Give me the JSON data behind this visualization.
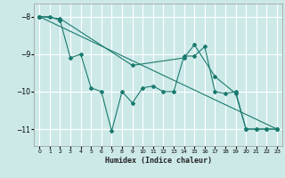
{
  "xlabel": "Humidex (Indice chaleur)",
  "ylabel": "",
  "background_color": "#cce9e8",
  "line_color": "#1a7a6e",
  "grid_color": "#ffffff",
  "xlim": [
    -0.5,
    23.5
  ],
  "ylim": [
    -11.45,
    -7.65
  ],
  "yticks": [
    -11,
    -10,
    -9,
    -8
  ],
  "xticks": [
    0,
    1,
    2,
    3,
    4,
    5,
    6,
    7,
    8,
    9,
    10,
    11,
    12,
    13,
    14,
    15,
    16,
    17,
    18,
    19,
    20,
    21,
    22,
    23
  ],
  "lines": [
    {
      "x": [
        0,
        1,
        2,
        3,
        4,
        5,
        6,
        7,
        8,
        9,
        10,
        11,
        12,
        13,
        14,
        15,
        16,
        17,
        18,
        19,
        20,
        21,
        22,
        23
      ],
      "y": [
        -8.0,
        -8.0,
        -8.1,
        -9.1,
        -9.0,
        -9.9,
        -10.0,
        -11.05,
        -10.0,
        -10.3,
        -9.9,
        -9.85,
        -10.0,
        -10.0,
        -9.05,
        -9.05,
        -8.8,
        -10.0,
        -10.05,
        -10.0,
        -11.0,
        -11.0,
        -11.0,
        -11.0
      ]
    },
    {
      "x": [
        0,
        2,
        9,
        14,
        15,
        17,
        19,
        20,
        21,
        22,
        23
      ],
      "y": [
        -8.0,
        -8.05,
        -9.3,
        -9.1,
        -8.75,
        -9.6,
        -10.05,
        -11.0,
        -11.0,
        -11.0,
        -11.0
      ]
    },
    {
      "x": [
        0,
        23
      ],
      "y": [
        -8.0,
        -11.0
      ]
    }
  ]
}
